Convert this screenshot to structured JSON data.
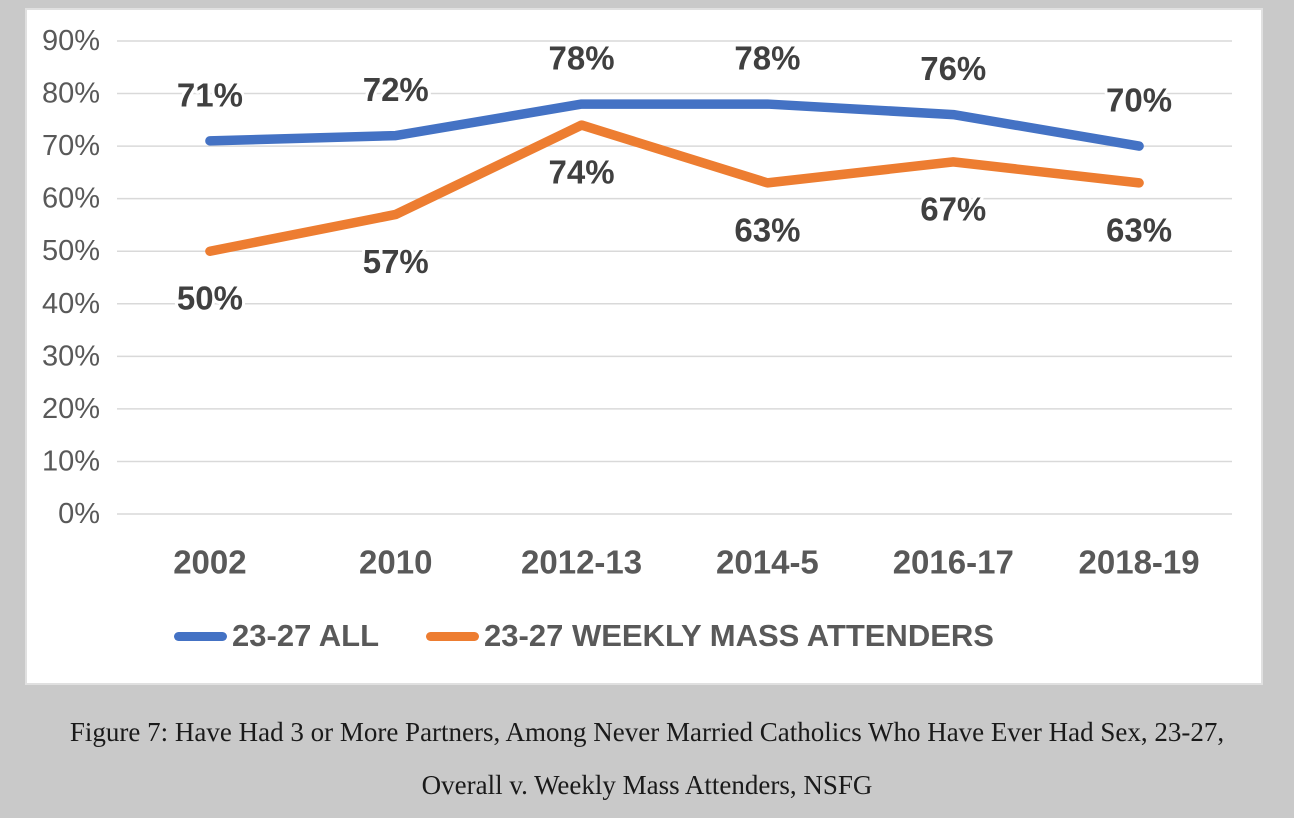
{
  "colors": {
    "page_background": "#c9c9c9",
    "card_background": "#ffffff",
    "card_border": "#e0e0e0",
    "gridline": "#d9d9d9",
    "axis_label": "#595959",
    "data_label": "#404040",
    "legend_text": "#595959",
    "caption_text": "#1a1a1a",
    "series_all": "#4472c4",
    "series_weekly": "#ed7d31"
  },
  "chart_data": {
    "type": "line",
    "categories": [
      "2002",
      "2010",
      "2012-13",
      "2014-5",
      "2016-17",
      "2018-19"
    ],
    "series": [
      {
        "name": "23-27 ALL",
        "color": "#4472c4",
        "values": [
          71,
          72,
          78,
          78,
          76,
          70
        ],
        "labels": [
          "71%",
          "72%",
          "78%",
          "78%",
          "76%",
          "70%"
        ],
        "label_position": "above"
      },
      {
        "name": "23-27 WEEKLY MASS ATTENDERS",
        "color": "#ed7d31",
        "values": [
          50,
          57,
          74,
          63,
          67,
          63
        ],
        "labels": [
          "50%",
          "57%",
          "74%",
          "63%",
          "67%",
          "63%"
        ],
        "label_position": "below"
      }
    ],
    "y_axis": {
      "min": 0,
      "max": 90,
      "step": 10,
      "tick_labels": [
        "0%",
        "10%",
        "20%",
        "30%",
        "40%",
        "50%",
        "60%",
        "70%",
        "80%",
        "90%"
      ]
    },
    "grid": true,
    "legend_position": "bottom"
  },
  "caption": {
    "text": "Figure 7: Have Had 3 or More Partners, Among Never Married Catholics Who Have Ever Had Sex, 23-27, Overall v. Weekly Mass Attenders, NSFG",
    "line1": "Figure 7: Have Had 3 or More Partners, Among Never Married Catholics Who Have Ever Had Sex, 23-27,",
    "line2": "Overall v. Weekly Mass Attenders, NSFG"
  }
}
